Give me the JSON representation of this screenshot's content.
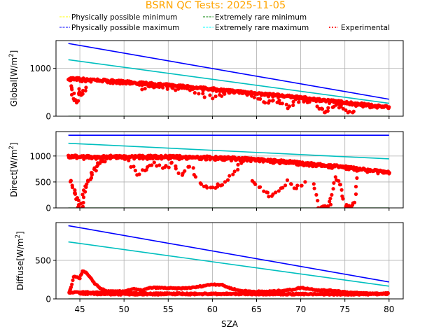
{
  "chart_data": {
    "type": "line",
    "title": "BSRN QC Tests: 2025-11-05",
    "xlabel": "SZA",
    "xlim": [
      42.3,
      81.6
    ],
    "xticks": [
      45,
      50,
      55,
      60,
      65,
      70,
      75,
      80
    ],
    "grid": true,
    "legend": {
      "placement": "top",
      "entries": [
        {
          "label": "Physically possible minimum",
          "color": "#ffff00",
          "style": "dashed"
        },
        {
          "label": "Extremely rare minimum",
          "color": "#008000",
          "style": "dashed"
        },
        {
          "label": "Physically possible maximum",
          "color": "#0000ff",
          "style": "dashed"
        },
        {
          "label": "Extremely rare maximum",
          "color": "#00ffff",
          "style": "dashed"
        },
        {
          "label": "Experimental",
          "color": "#ff0000",
          "style": "dotted"
        }
      ]
    },
    "panels": [
      {
        "name": "global",
        "ylabel": "Global[W/m²]",
        "ylabel_main": "Global[W/m",
        "ylim": [
          0,
          1580
        ],
        "yticks": [
          0,
          1000
        ],
        "lines": [
          {
            "name": "Physically possible minimum",
            "color": "#ffff00",
            "x": [
              43.7,
              80
            ],
            "y": [
              -4,
              -4
            ]
          },
          {
            "name": "Extremely rare minimum",
            "color": "#008000",
            "x": [
              43.7,
              80
            ],
            "y": [
              -2,
              -2
            ]
          },
          {
            "name": "Physically possible maximum",
            "color": "#0000ff",
            "x": [
              43.7,
              80
            ],
            "y": [
              1520,
              355
            ]
          },
          {
            "name": "Extremely rare maximum",
            "color": "#00bfbf",
            "x": [
              43.7,
              80
            ],
            "y": [
              1180,
              270
            ]
          }
        ],
        "scatter": {
          "name": "Experimental",
          "color": "#ff0000",
          "upper_envelope": {
            "x": [
              43.7,
              45,
              47,
              50,
              55,
              60,
              65,
              70,
              75,
              80
            ],
            "y": [
              790,
              780,
              760,
              720,
              650,
              570,
              480,
              390,
              290,
              190
            ]
          },
          "dips": [
            {
              "x": [
                44.0,
                44.3,
                44.6,
                45.0,
                45.3,
                45.7
              ],
              "y": [
                620,
                440,
                290,
                560,
                410,
                600
              ]
            },
            {
              "x": [
                52.0,
                53.5,
                55.5,
                57.0,
                58.5,
                60.0,
                61.5,
                62.5
              ],
              "y": [
                570,
                620,
                560,
                620,
                450,
                400,
                470,
                490
              ]
            },
            {
              "x": [
                64.0,
                65.5,
                66.5,
                67.5,
                68.5,
                69.5,
                71.0
              ],
              "y": [
                430,
                330,
                290,
                340,
                200,
                320,
                300
              ]
            },
            {
              "x": [
                72.0,
                72.5,
                73.0,
                74.0,
                75.0,
                76.0
              ],
              "y": [
                180,
                120,
                110,
                220,
                110,
                100
              ]
            }
          ]
        }
      },
      {
        "name": "direct",
        "ylabel": "Direct[W/m²]",
        "ylabel_main": "Direct[W/m",
        "ylim": [
          0,
          1470
        ],
        "yticks": [
          0,
          500,
          1000
        ],
        "lines": [
          {
            "name": "Physically possible minimum",
            "color": "#ffff00",
            "x": [
              43.7,
              80
            ],
            "y": [
              -4,
              -4
            ]
          },
          {
            "name": "Extremely rare minimum",
            "color": "#008000",
            "x": [
              43.7,
              80
            ],
            "y": [
              -2,
              -2
            ]
          },
          {
            "name": "Physically possible maximum",
            "color": "#0000ff",
            "x": [
              43.7,
              80
            ],
            "y": [
              1400,
              1400
            ]
          },
          {
            "name": "Extremely rare maximum",
            "color": "#00bfbf",
            "x": [
              43.7,
              80
            ],
            "y": [
              1245,
              945
            ]
          }
        ],
        "scatter": {
          "name": "Experimental",
          "color": "#ff0000",
          "upper_envelope": {
            "x": [
              43.7,
              45,
              50,
              55,
              60,
              65,
              70,
              75,
              80
            ],
            "y": [
              1000,
              990,
              990,
              990,
              975,
              940,
              870,
              790,
              680
            ]
          },
          "dips": [
            {
              "x": [
                44.0,
                44.3,
                44.6,
                44.9,
                45.2,
                45.5,
                45.8,
                46.2,
                46.6,
                47.0,
                47.5,
                48.0
              ],
              "y": [
                550,
                350,
                200,
                40,
                60,
                340,
                470,
                600,
                720,
                830,
                880,
                960
              ]
            },
            {
              "x": [
                50.5,
                51.5,
                52.5,
                53.5,
                54.5,
                55.5,
                56.5,
                57.5,
                58.5,
                59.5,
                60.5,
                61.5,
                62.5,
                63.5
              ],
              "y": [
                880,
                650,
                750,
                860,
                750,
                860,
                640,
                820,
                500,
                380,
                420,
                500,
                710,
                900
              ]
            },
            {
              "x": [
                64.5,
                65.5,
                66.5,
                67.5,
                68.5,
                69.5,
                70.5
              ],
              "y": [
                520,
                380,
                240,
                310,
                500,
                360,
                500
              ]
            },
            {
              "x": [
                71.5,
                72.0,
                72.5,
                73.0,
                73.5,
                74.0,
                74.5,
                75.0,
                75.5,
                76.0,
                76.5
              ],
              "y": [
                480,
                20,
                10,
                10,
                160,
                560,
                440,
                50,
                30,
                90,
                720
              ]
            }
          ]
        }
      },
      {
        "name": "diffuse",
        "ylabel": "Diffuse[W/m²]",
        "ylabel_main": "Diffuse[W/m",
        "ylim": [
          0,
          990
        ],
        "yticks": [
          0,
          500
        ],
        "lines": [
          {
            "name": "Physically possible minimum",
            "color": "#ffff00",
            "x": [
              43.7,
              80
            ],
            "y": [
              -4,
              -4
            ]
          },
          {
            "name": "Extremely rare minimum",
            "color": "#008000",
            "x": [
              43.7,
              80
            ],
            "y": [
              -2,
              -2
            ]
          },
          {
            "name": "Physically possible maximum",
            "color": "#0000ff",
            "x": [
              43.7,
              80
            ],
            "y": [
              950,
              220
            ]
          },
          {
            "name": "Extremely rare maximum",
            "color": "#00bfbf",
            "x": [
              43.7,
              80
            ],
            "y": [
              740,
              165
            ]
          }
        ],
        "scatter": {
          "name": "Experimental",
          "color": "#ff0000",
          "traces": [
            {
              "x": [
                43.8,
                44.0,
                44.3,
                44.6,
                45.0,
                45.3,
                45.7,
                46.2,
                46.7,
                47.3,
                48.0,
                49.0,
                50.0,
                51.0,
                52.0,
                53.0,
                54.0,
                55.0,
                56.0,
                57.0,
                58.0,
                59.0,
                60.0,
                61.0,
                62.0,
                63.0,
                64.0,
                65.0,
                66.0,
                67.0,
                68.0,
                69.0,
                70.0,
                71.0,
                72.0,
                73.0,
                74.0,
                75.0,
                76.0,
                77.0,
                78.0,
                79.0,
                80.0
              ],
              "y": [
                80,
                150,
                280,
                290,
                270,
                360,
                340,
                270,
                200,
                140,
                100,
                95,
                100,
                130,
                110,
                145,
                145,
                140,
                135,
                140,
                150,
                170,
                190,
                185,
                140,
                110,
                100,
                95,
                95,
                100,
                110,
                120,
                145,
                130,
                115,
                110,
                105,
                90,
                80,
                75,
                72,
                70,
                75
              ]
            },
            {
              "x": [
                43.8,
                45,
                50,
                55,
                60,
                65,
                70,
                75,
                80
              ],
              "y": [
                80,
                88,
                75,
                70,
                68,
                68,
                65,
                65,
                70
              ]
            },
            {
              "x": [
                45,
                50,
                55,
                60,
                65,
                70,
                75,
                80
              ],
              "y": [
                65,
                60,
                60,
                62,
                62,
                60,
                58,
                62
              ]
            }
          ]
        }
      }
    ]
  }
}
